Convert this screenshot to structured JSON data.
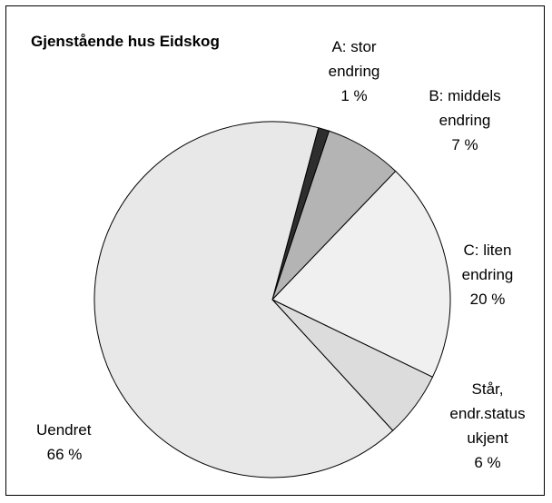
{
  "chart_data": {
    "type": "pie",
    "title": "Gjenstående hus Eidskog",
    "categories": [
      "A: stor endring",
      "B: middels endring",
      "C: liten endring",
      "Står, endr.status ukjent",
      "Uendret"
    ],
    "values": [
      1,
      7,
      20,
      6,
      66
    ],
    "value_labels": [
      "1 %",
      "7 %",
      "20 %",
      "6 %",
      "66 %"
    ],
    "colors": [
      "#2e2e2e",
      "#b4b4b4",
      "#f0f0f0",
      "#dcdcdc",
      "#e8e8e8"
    ]
  }
}
